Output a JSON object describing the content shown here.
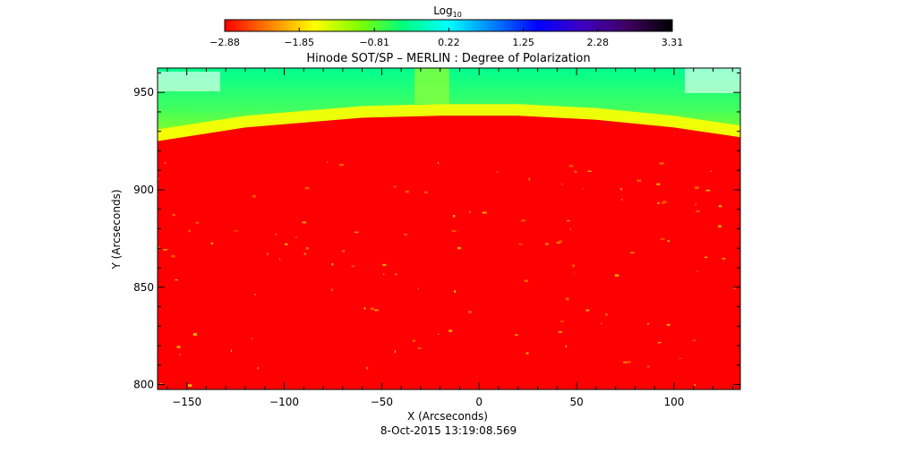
{
  "chart_data": {
    "type": "heatmap",
    "title": "Hinode SOT/SP – MERLIN : Degree of Polarization",
    "xlabel": "X (Arcseconds)",
    "ylabel": "Y (Arcseconds)",
    "timestamp": "8-Oct-2015 13:19:08.569",
    "xlim": [
      -165,
      134
    ],
    "ylim": [
      797.5,
      962.5
    ],
    "x_ticks": [
      -150,
      -100,
      -50,
      0,
      50,
      100
    ],
    "y_ticks": [
      800,
      850,
      900,
      950
    ],
    "x_tick_labels": [
      "−150",
      "−100",
      "−50",
      "0",
      "50",
      "100"
    ],
    "y_tick_labels": [
      "800",
      "850",
      "900",
      "950"
    ],
    "colorbar": {
      "label_base": "Log",
      "label_sub": "10",
      "range": [
        -2.88,
        3.31
      ],
      "ticks": [
        -2.88,
        -1.85,
        -0.81,
        0.22,
        1.25,
        2.28,
        3.31
      ],
      "tick_labels": [
        "−2.88",
        "−1.85",
        "−0.81",
        "0.22",
        "1.25",
        "2.28",
        "3.31"
      ],
      "colors": [
        "#ff0000",
        "#ff8000",
        "#ffff00",
        "#80ff00",
        "#00ff80",
        "#00ffff",
        "#0080ff",
        "#0000ff",
        "#4000c0",
        "#400060",
        "#000000"
      ]
    },
    "limb_y": [
      [
        -165,
        925
      ],
      [
        -120,
        932
      ],
      [
        -60,
        937
      ],
      [
        -20,
        938
      ],
      [
        20,
        938
      ],
      [
        60,
        936
      ],
      [
        100,
        932
      ],
      [
        134,
        927
      ]
    ],
    "colors": {
      "disk": "#ff0000",
      "limb_band": "#ffff00",
      "off_limb_low": "#b0ff00",
      "off_limb_high": "#00ff90",
      "grid": "#000000"
    }
  }
}
